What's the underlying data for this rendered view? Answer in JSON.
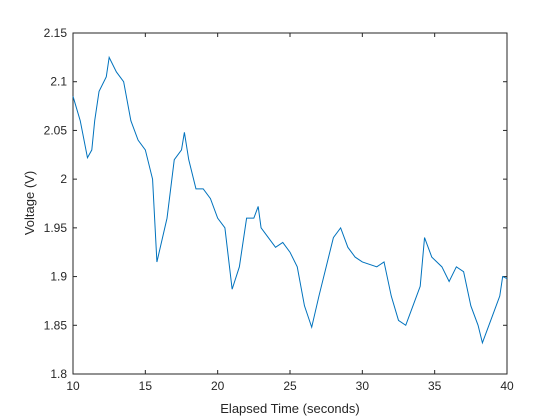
{
  "chart_data": {
    "type": "line",
    "xlabel": "Elapsed Time (seconds)",
    "ylabel": "Voltage (V)",
    "x": [
      10,
      10.5,
      11,
      11.3,
      11.5,
      11.8,
      12.3,
      12.5,
      13,
      13.5,
      14,
      14.5,
      15,
      15.5,
      15.8,
      16.5,
      17,
      17.5,
      17.7,
      18,
      18.5,
      19,
      19.5,
      20,
      20.5,
      21,
      21.5,
      22,
      22.5,
      22.8,
      23,
      23.5,
      24,
      24.5,
      25,
      25.5,
      26,
      26.5,
      27,
      27.5,
      28,
      28.5,
      29,
      29.5,
      30,
      31,
      31.5,
      32,
      32.5,
      33,
      33.5,
      34,
      34.3,
      34.8,
      35.5,
      36,
      36.5,
      37,
      37.5,
      38,
      38.3,
      39,
      39.5,
      39.7,
      40
    ],
    "series": [
      {
        "name": "Voltage",
        "color": "#0072bd",
        "values": [
          2.085,
          2.06,
          2.022,
          2.03,
          2.06,
          2.09,
          2.105,
          2.125,
          2.11,
          2.1,
          2.06,
          2.04,
          2.03,
          2.0,
          1.915,
          1.96,
          2.02,
          2.03,
          2.048,
          2.02,
          1.99,
          1.99,
          1.98,
          1.96,
          1.95,
          1.887,
          1.91,
          1.96,
          1.96,
          1.972,
          1.95,
          1.94,
          1.93,
          1.935,
          1.925,
          1.91,
          1.87,
          1.848,
          1.88,
          1.91,
          1.94,
          1.95,
          1.93,
          1.92,
          1.915,
          1.91,
          1.915,
          1.88,
          1.855,
          1.85,
          1.87,
          1.89,
          1.94,
          1.92,
          1.91,
          1.895,
          1.91,
          1.905,
          1.87,
          1.85,
          1.832,
          1.86,
          1.88,
          1.9,
          1.898
        ]
      }
    ],
    "xlim": [
      10,
      40
    ],
    "xticks": [
      10,
      15,
      20,
      25,
      30,
      35,
      40
    ],
    "ylim": [
      1.8,
      2.15
    ],
    "yticks": [
      1.8,
      1.85,
      1.9,
      1.95,
      2,
      2.05,
      2.1,
      2.15
    ],
    "grid": false
  }
}
